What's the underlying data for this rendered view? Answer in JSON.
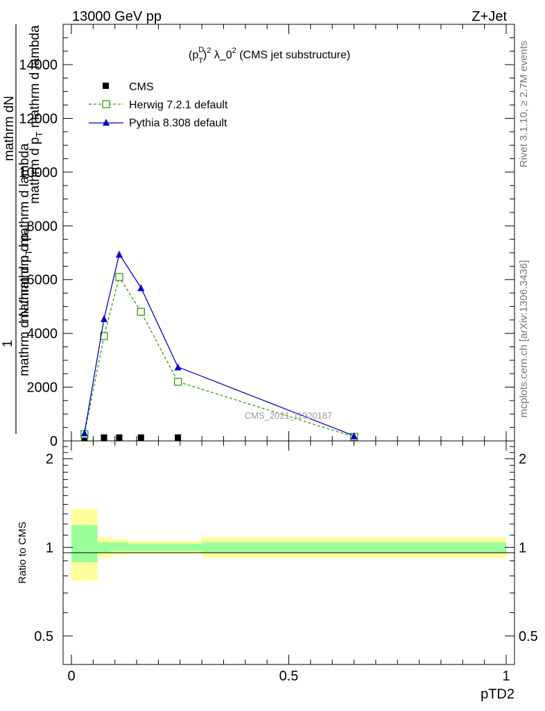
{
  "header": {
    "energy": "13000 GeV pp",
    "process": "Z+Jet"
  },
  "side_text": {
    "rivet": "Rivet 3.1.10, ≥ 2.7M events",
    "mcplots": "mcplots.cern.ch [arXiv:1306.3436]"
  },
  "watermark": "CMS_2021_I1920187",
  "ratio_label": "Ratio to CMS",
  "colors": {
    "cms": "#000000",
    "herwig": "#339900",
    "pythia": "#0000cc",
    "band_outer": "#ffff99",
    "band_inner": "#99ff99"
  },
  "chart_data": {
    "type": "line",
    "title": "(p_T^D)^2 λ_0^2 (CMS jet substructure)",
    "title_parts": {
      "p": "(p",
      "sub": "T",
      "sup": "D",
      "close": ")",
      "sq": "2",
      "mid": " λ_0",
      "sq2": "2",
      "tail": " (CMS jet substructure)"
    },
    "xlabel": "pTD2",
    "ylabel_parts": {
      "one": "1",
      "num1": "mathrm dN",
      "num2": "mathrm d N /mathrm d p",
      "num2_sub": "T",
      "den1": "mathrm d p",
      "den1_sub": "T",
      "den1_rest": " mathrm d lambda",
      "den2": "mathrm d p",
      "den2_sub": "T",
      "den2_rest": " mathrm d lambda"
    },
    "xlim": [
      0,
      1
    ],
    "ylim": [
      0,
      15500
    ],
    "x_ticks": [
      0,
      0.5,
      1
    ],
    "x_tick_labels": [
      "0",
      "0.5",
      "1"
    ],
    "y_ticks": [
      0,
      2000,
      4000,
      6000,
      8000,
      10000,
      12000,
      14000
    ],
    "y_tick_labels": [
      "0",
      "2000",
      "4000",
      "6000",
      "8000",
      "10000",
      "12000",
      "14000"
    ],
    "series": [
      {
        "name": "CMS",
        "marker": "square-filled",
        "x": [
          0.03,
          0.075,
          0.11,
          0.16,
          0.245
        ],
        "y": [
          10,
          10,
          10,
          10,
          10
        ]
      },
      {
        "name": "Herwig 7.2.1 default",
        "marker": "square-open",
        "dash": true,
        "x": [
          0.03,
          0.075,
          0.11,
          0.16,
          0.245,
          0.65
        ],
        "y": [
          250,
          3900,
          6100,
          4800,
          2200,
          150
        ]
      },
      {
        "name": "Pythia 8.308 default",
        "marker": "triangle",
        "x": [
          0.03,
          0.075,
          0.11,
          0.16,
          0.245,
          0.65
        ],
        "y": [
          300,
          4550,
          6950,
          5700,
          2750,
          190
        ]
      }
    ],
    "ratio": {
      "ylabel": "Ratio to CMS",
      "ylim": [
        0.4,
        2.3
      ],
      "y_ticks": [
        0.5,
        1,
        2
      ],
      "y_tick_labels": [
        "0.5",
        "1",
        "2"
      ],
      "bands": [
        {
          "x0": 0.0,
          "x1": 0.06,
          "outer": [
            0.77,
            1.35
          ],
          "inner": [
            0.89,
            1.19
          ]
        },
        {
          "x0": 0.06,
          "x1": 0.09,
          "outer": [
            0.92,
            1.08
          ],
          "inner": [
            0.96,
            1.04
          ]
        },
        {
          "x0": 0.09,
          "x1": 0.13,
          "outer": [
            0.94,
            1.07
          ],
          "inner": [
            0.97,
            1.04
          ]
        },
        {
          "x0": 0.13,
          "x1": 0.19,
          "outer": [
            0.95,
            1.05
          ],
          "inner": [
            0.97,
            1.03
          ]
        },
        {
          "x0": 0.19,
          "x1": 0.3,
          "outer": [
            0.95,
            1.05
          ],
          "inner": [
            0.97,
            1.03
          ]
        },
        {
          "x0": 0.3,
          "x1": 1.0,
          "outer": [
            0.92,
            1.08
          ],
          "inner": [
            0.96,
            1.04
          ]
        }
      ]
    }
  }
}
